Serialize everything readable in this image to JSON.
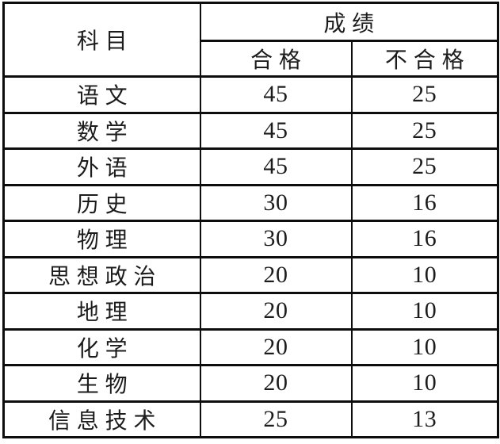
{
  "table": {
    "headers": {
      "subject": "科目",
      "score_group": "成绩",
      "pass": "合格",
      "fail": "不合格"
    },
    "rows": [
      {
        "subject": "语文",
        "pass": "45",
        "fail": "25"
      },
      {
        "subject": "数学",
        "pass": "45",
        "fail": "25"
      },
      {
        "subject": "外语",
        "pass": "45",
        "fail": "25"
      },
      {
        "subject": "历史",
        "pass": "30",
        "fail": "16"
      },
      {
        "subject": "物理",
        "pass": "30",
        "fail": "16"
      },
      {
        "subject": "思想政治",
        "pass": "20",
        "fail": "10"
      },
      {
        "subject": "地理",
        "pass": "20",
        "fail": "10"
      },
      {
        "subject": "化学",
        "pass": "20",
        "fail": "10"
      },
      {
        "subject": "生物",
        "pass": "20",
        "fail": "10"
      },
      {
        "subject": "信息技术",
        "pass": "25",
        "fail": "13"
      }
    ],
    "colors": {
      "border": "#0d0d0d",
      "text": "#1c1c1c",
      "background": "#ffffff"
    }
  }
}
